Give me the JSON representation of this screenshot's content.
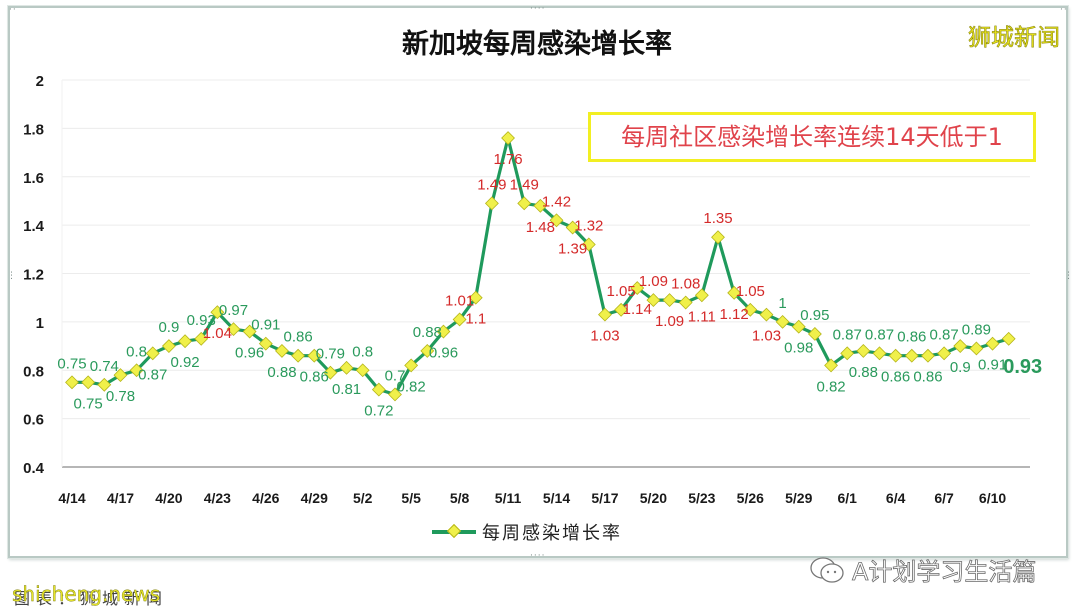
{
  "header": {
    "title": "新加坡每周感染增长率",
    "brand": "狮城新闻"
  },
  "annotation": {
    "note": "每周社区感染增长率连续14天低于1"
  },
  "legend": {
    "label": "每周感染增长率"
  },
  "footer": {
    "wechat_account": "A计划学习生活篇",
    "watermark": "shicheng.news",
    "source": "图表：狮城新闻"
  },
  "colors": {
    "line": "#1f9a5c",
    "marker_fill": "#f0f04a",
    "label_below_one": "#2a9a5c",
    "label_above_one": "#d42a2a",
    "note_border": "#f2ef22",
    "note_text": "#e0434b",
    "brand": "#e8e31a"
  },
  "chart_data": {
    "type": "line",
    "title": "新加坡每周感染增长率",
    "xlabel": "",
    "ylabel": "",
    "ylim": [
      0.4,
      2
    ],
    "yticks": [
      "0.4",
      "0.6",
      "0.8",
      "1",
      "1.2",
      "1.4",
      "1.6",
      "1.8",
      "2"
    ],
    "xtick_labels": [
      "4/14",
      "4/17",
      "4/20",
      "4/23",
      "4/26",
      "4/29",
      "5/2",
      "5/5",
      "5/8",
      "5/11",
      "5/14",
      "5/17",
      "5/20",
      "5/23",
      "5/26",
      "5/29",
      "6/1",
      "6/4",
      "6/7",
      "6/10"
    ],
    "grid": true,
    "legend_position": "bottom",
    "categories": [
      "4/14",
      "4/15",
      "4/16",
      "4/17",
      "4/18",
      "4/19",
      "4/20",
      "4/21",
      "4/22",
      "4/23",
      "4/24",
      "4/25",
      "4/26",
      "4/27",
      "4/28",
      "4/29",
      "4/30",
      "5/1",
      "5/2",
      "5/3",
      "5/4",
      "5/5",
      "5/6",
      "5/7",
      "5/8",
      "5/9",
      "5/10",
      "5/11",
      "5/12",
      "5/13",
      "5/14",
      "5/15",
      "5/16",
      "5/17",
      "5/18",
      "5/19",
      "5/20",
      "5/21",
      "5/22",
      "5/23",
      "5/24",
      "5/25",
      "5/26",
      "5/27",
      "5/28",
      "5/29",
      "5/30",
      "5/31",
      "6/1",
      "6/2",
      "6/3",
      "6/4",
      "6/5",
      "6/6",
      "6/7",
      "6/8",
      "6/9",
      "6/10",
      "6/11"
    ],
    "series": [
      {
        "name": "每周感染增长率",
        "values": [
          0.75,
          0.75,
          0.74,
          0.78,
          0.8,
          0.87,
          0.9,
          0.92,
          0.93,
          1.04,
          0.97,
          0.96,
          0.91,
          0.88,
          0.86,
          0.86,
          0.79,
          0.81,
          0.8,
          0.72,
          0.7,
          0.82,
          0.88,
          0.96,
          1.01,
          1.1,
          1.49,
          1.76,
          1.49,
          1.48,
          1.42,
          1.39,
          1.32,
          1.03,
          1.05,
          1.14,
          1.09,
          1.09,
          1.08,
          1.11,
          1.35,
          1.12,
          1.05,
          1.03,
          1.0,
          0.98,
          0.95,
          0.82,
          0.87,
          0.88,
          0.87,
          0.86,
          0.86,
          0.86,
          0.87,
          0.9,
          0.89,
          0.91,
          0.93
        ]
      }
    ],
    "annotations": [
      "每周社区感染增长率连续14天低于1",
      "最新值 0.93"
    ]
  }
}
